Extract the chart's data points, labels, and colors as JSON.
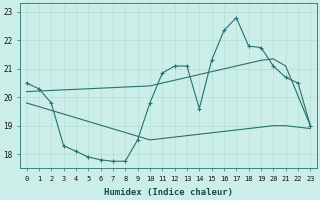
{
  "xlabel": "Humidex (Indice chaleur)",
  "x": [
    0,
    1,
    2,
    3,
    4,
    5,
    6,
    7,
    8,
    9,
    10,
    11,
    12,
    13,
    14,
    15,
    16,
    17,
    18,
    19,
    20,
    21,
    22,
    23
  ],
  "line1": [
    20.5,
    20.3,
    19.8,
    18.3,
    18.1,
    17.9,
    17.8,
    17.75,
    17.75,
    18.5,
    19.8,
    20.85,
    21.1,
    21.1,
    19.6,
    21.3,
    22.35,
    22.8,
    21.8,
    21.75,
    21.1,
    20.7,
    20.5,
    19.0
  ],
  "line2_x": [
    0,
    10,
    11,
    12,
    13,
    14,
    15,
    16,
    17,
    18,
    19,
    20,
    21,
    23
  ],
  "line2_y": [
    20.2,
    20.4,
    20.5,
    20.6,
    20.7,
    20.8,
    20.9,
    21.0,
    21.1,
    21.2,
    21.3,
    21.35,
    21.1,
    19.0
  ],
  "line3_x": [
    0,
    10,
    11,
    12,
    13,
    14,
    15,
    16,
    17,
    18,
    19,
    20,
    21,
    23
  ],
  "line3_y": [
    19.8,
    18.5,
    18.55,
    18.6,
    18.65,
    18.7,
    18.75,
    18.8,
    18.85,
    18.9,
    18.95,
    19.0,
    19.0,
    18.9
  ],
  "line_color": "#287070",
  "bg_color": "#cceee8",
  "grid_color": "#aaddcc",
  "ylim": [
    17.5,
    23.3
  ],
  "yticks": [
    18,
    19,
    20,
    21,
    22,
    23
  ],
  "xlim": [
    -0.5,
    23.5
  ]
}
